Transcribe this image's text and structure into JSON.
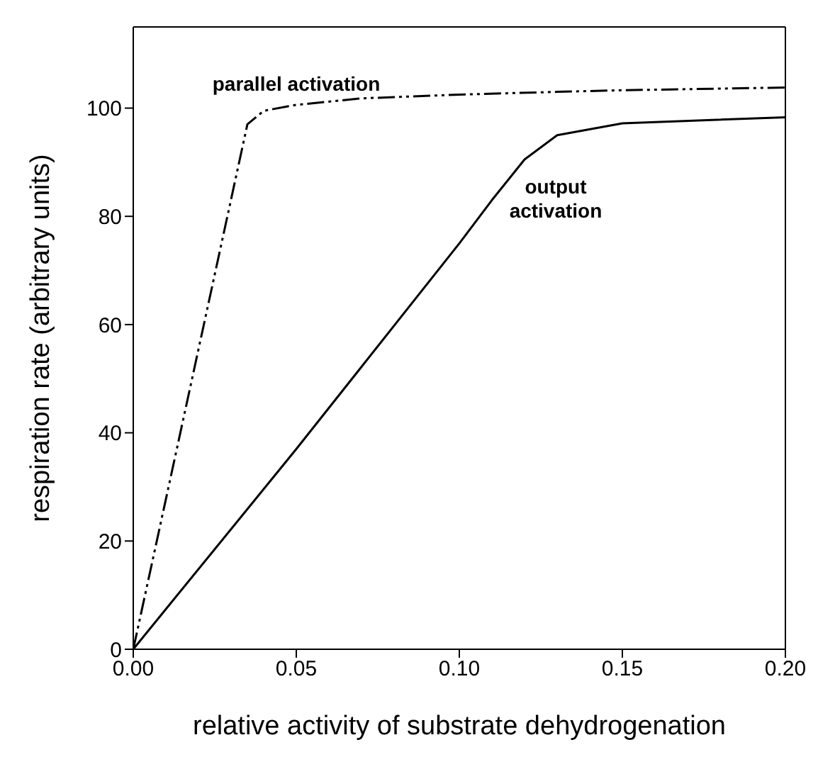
{
  "chart_data": {
    "type": "line",
    "xlabel": "relative activity of substrate dehydrogenation",
    "ylabel": "respiration rate (arbitrary units)",
    "series": [
      {
        "name": "parallel activation",
        "color": "#000000",
        "line_style": "dashed",
        "x": [
          0,
          0.035,
          0.04,
          0.05,
          0.07,
          0.1,
          0.13,
          0.15,
          0.2
        ],
        "values": [
          0,
          97,
          99.5,
          100.6,
          101.8,
          102.5,
          103,
          103.3,
          103.8
        ]
      },
      {
        "name": "output activation",
        "color": "#000000",
        "line_style": "solid",
        "x": [
          0,
          0.05,
          0.1,
          0.11,
          0.12,
          0.13,
          0.15,
          0.2
        ],
        "values": [
          0,
          37,
          75,
          83,
          90.5,
          95,
          97.2,
          98.3
        ]
      }
    ],
    "xlim": [
      0,
      0.2
    ],
    "xticks": [
      {
        "value": 0,
        "label": "0.00"
      },
      {
        "value": 0.05,
        "label": "0.05"
      },
      {
        "value": 0.1,
        "label": "0.10"
      },
      {
        "value": 0.15,
        "label": "0.15"
      },
      {
        "value": 0.2,
        "label": "0.20"
      }
    ],
    "ylim": [
      0,
      115
    ],
    "yticks": [
      0,
      20,
      40,
      60,
      80,
      100
    ],
    "marker": "none"
  }
}
